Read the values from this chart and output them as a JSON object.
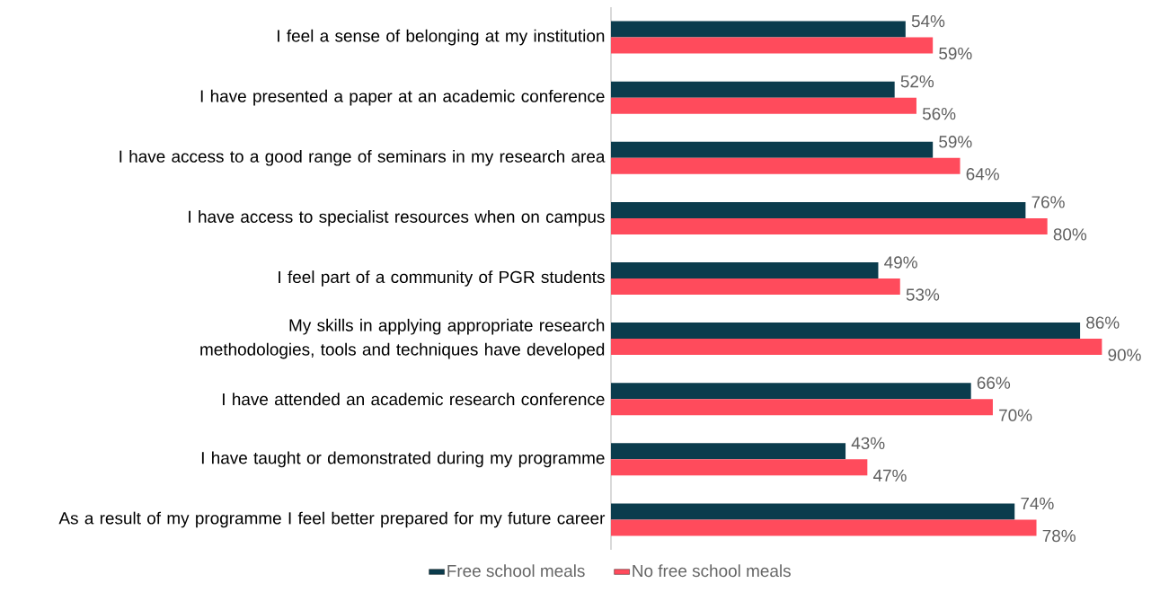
{
  "chart_data": {
    "type": "bar",
    "orientation": "horizontal",
    "categories": [
      "I feel a sense of belonging at my institution",
      "I have presented a paper at an academic conference",
      "I have access to a good range of seminars in my research area",
      "I have access to specialist resources when on campus",
      "I feel part of a community of PGR students",
      "My skills in applying appropriate research methodologies, tools and techniques have developed",
      "I have attended an academic research conference",
      "I have taught or demonstrated during my programme",
      "As a result of my programme I feel better prepared for my future career"
    ],
    "series": [
      {
        "name": "Free school meals",
        "color": "#0b3c4d",
        "values": [
          54,
          52,
          59,
          76,
          49,
          86,
          66,
          43,
          74
        ],
        "value_labels": [
          "54%",
          "52%",
          "59%",
          "76%",
          "49%",
          "86%",
          "66%",
          "43%",
          "74%"
        ]
      },
      {
        "name": "No free school meals",
        "color": "#ff4b5c",
        "values": [
          59,
          56,
          64,
          80,
          53,
          90,
          70,
          47,
          78
        ],
        "value_labels": [
          "59%",
          "56%",
          "64%",
          "80%",
          "53%",
          "90%",
          "70%",
          "47%",
          "78%"
        ]
      }
    ],
    "tick_labels": "y",
    "legend": "bottom"
  }
}
